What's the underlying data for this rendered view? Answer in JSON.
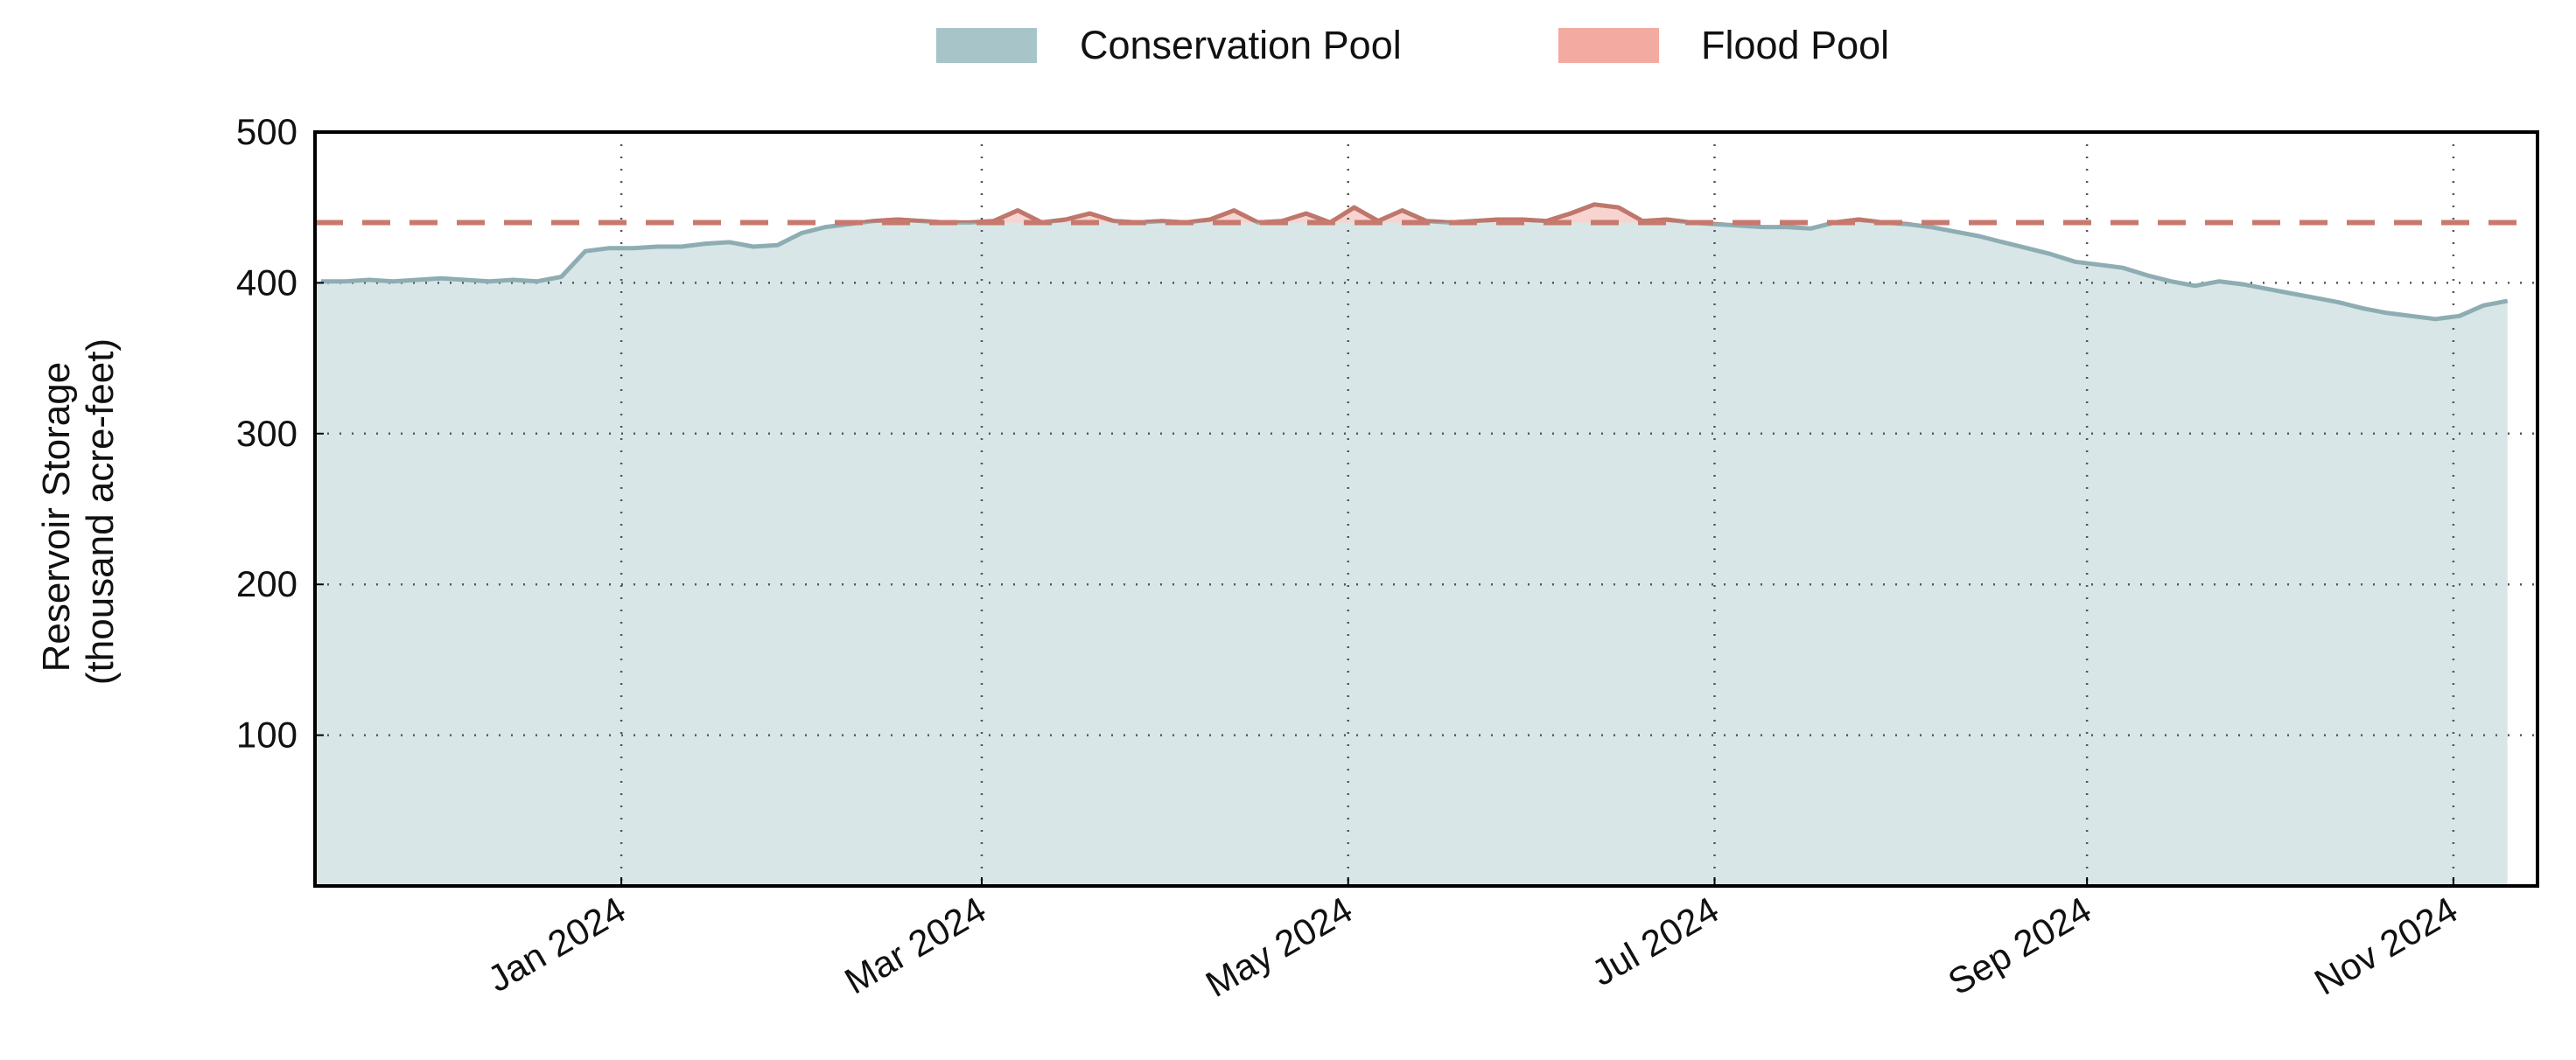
{
  "chart_data": {
    "type": "area",
    "title": "",
    "xlabel": "",
    "ylabel": [
      "Reservoir Storage",
      "(thousand acre-feet)"
    ],
    "ylim": [
      0,
      500
    ],
    "xlim": [
      "2023-11-11",
      "2024-11-15"
    ],
    "yticks": [
      100,
      200,
      300,
      400,
      500
    ],
    "xticks": [
      {
        "date": "2024-01-01",
        "label": "Jan 2024"
      },
      {
        "date": "2024-03-01",
        "label": "Mar 2024"
      },
      {
        "date": "2024-05-01",
        "label": "May 2024"
      },
      {
        "date": "2024-07-01",
        "label": "Jul 2024"
      },
      {
        "date": "2024-09-01",
        "label": "Sep 2024"
      },
      {
        "date": "2024-11-01",
        "label": "Nov 2024"
      }
    ],
    "grid": true,
    "legend": {
      "placement": "top-center",
      "entries": [
        {
          "label": "Conservation Pool",
          "color": "#a7c4c9"
        },
        {
          "label": "Flood Pool",
          "color": "#f2aaa1"
        }
      ]
    },
    "flood_threshold": 440,
    "series": {
      "name": "Reservoir Storage",
      "start_date": "2023-11-12",
      "step_days": 4,
      "values": [
        401,
        401,
        402,
        401,
        402,
        403,
        402,
        401,
        402,
        401,
        404,
        421,
        423,
        423,
        424,
        424,
        426,
        427,
        424,
        425,
        433,
        437,
        439,
        441,
        442,
        441,
        440,
        440,
        441,
        448,
        440,
        442,
        446,
        441,
        440,
        441,
        440,
        442,
        448,
        440,
        441,
        446,
        440,
        450,
        441,
        448,
        441,
        440,
        441,
        442,
        442,
        441,
        446,
        452,
        450,
        441,
        442,
        440,
        439,
        438,
        437,
        437,
        436,
        440,
        442,
        440,
        439,
        437,
        434,
        431,
        427,
        423,
        419,
        414,
        412,
        410,
        405,
        401,
        398,
        401,
        399,
        396,
        393,
        390,
        387,
        383,
        380,
        378,
        376,
        378,
        385,
        388
      ]
    },
    "colors": {
      "conservation_fill": "#d8e6e7",
      "conservation_line": "#8eadb3",
      "flood_fill": "#f7d4cf",
      "flood_line": "#c0766b",
      "threshold_line": "#c8796d"
    }
  }
}
